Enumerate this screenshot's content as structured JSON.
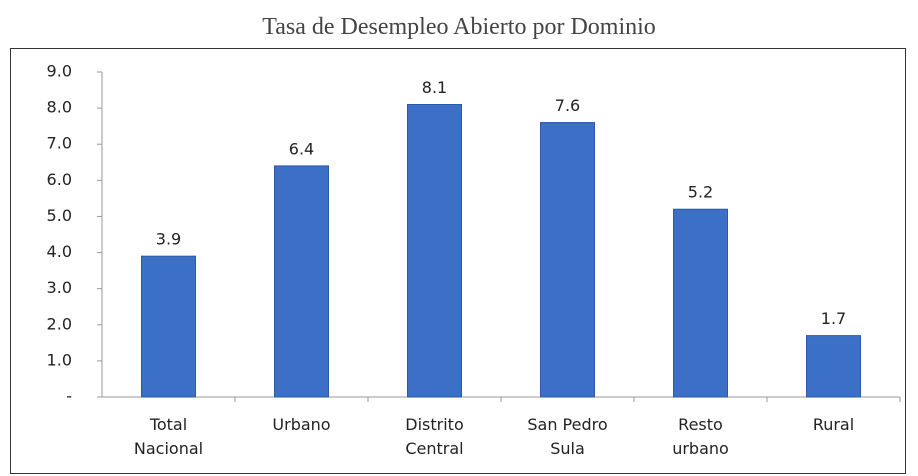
{
  "chart_data": {
    "type": "bar",
    "title": "Tasa de Desempleo Abierto por Dominio",
    "categories": [
      "Total Nacional",
      "Urbano",
      "Distrito Central",
      "San Pedro Sula",
      "Resto urbano",
      "Rural"
    ],
    "values": [
      3.9,
      6.4,
      8.1,
      7.6,
      5.2,
      1.7
    ],
    "color": "#3c70c6",
    "ylim": [
      0,
      9
    ],
    "yticks": [
      {
        "value": 0,
        "label": "-"
      },
      {
        "value": 1,
        "label": "1.0"
      },
      {
        "value": 2,
        "label": "2.0"
      },
      {
        "value": 3,
        "label": "3.0"
      },
      {
        "value": 4,
        "label": "4.0"
      },
      {
        "value": 5,
        "label": "5.0"
      },
      {
        "value": 6,
        "label": "6.0"
      },
      {
        "value": 7,
        "label": "7.0"
      },
      {
        "value": 8,
        "label": "8.0"
      },
      {
        "value": 9,
        "label": "9.0"
      }
    ],
    "grid": false
  }
}
